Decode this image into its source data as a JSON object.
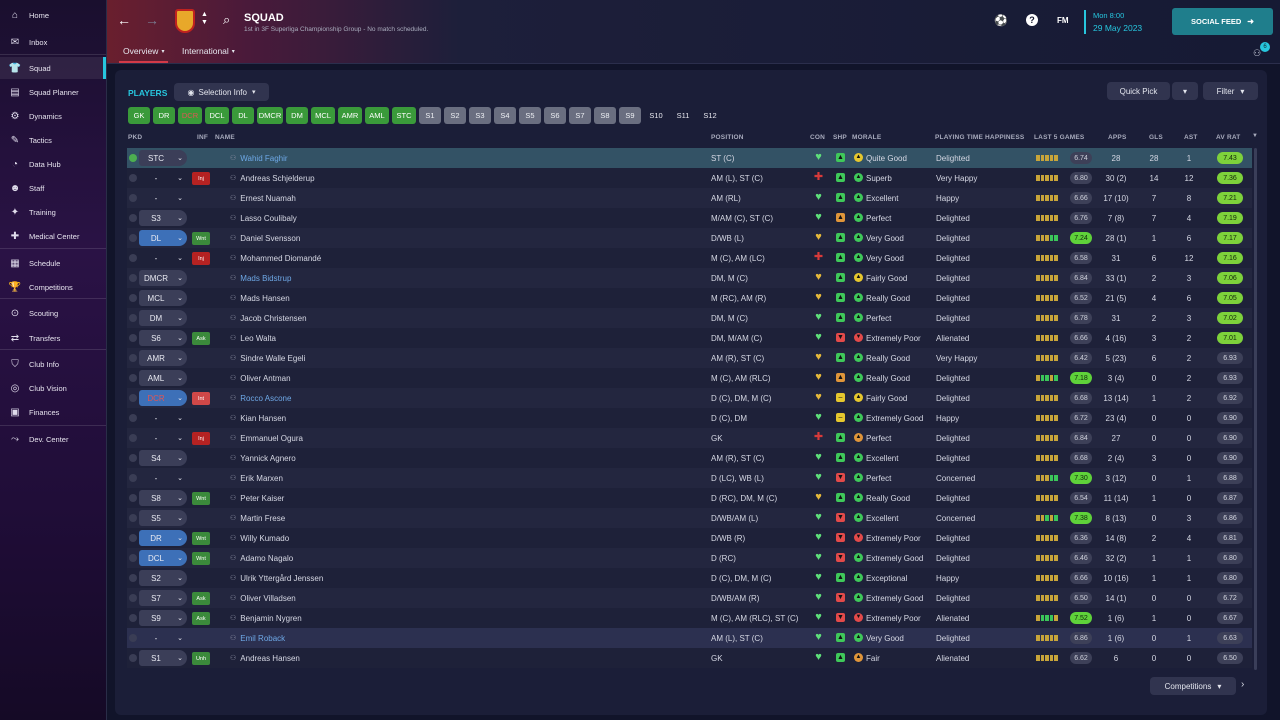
{
  "sidebar": {
    "items": [
      {
        "label": "Home",
        "icon": "home-icon",
        "glyph": "⌂"
      },
      {
        "label": "Inbox",
        "icon": "inbox-icon",
        "glyph": "✉"
      },
      {
        "label": "Squad",
        "icon": "shirt-icon",
        "glyph": "👕",
        "active": true
      },
      {
        "label": "Squad Planner",
        "icon": "planner-icon",
        "glyph": "▤"
      },
      {
        "label": "Dynamics",
        "icon": "dynamics-icon",
        "glyph": "⚙"
      },
      {
        "label": "Tactics",
        "icon": "tactics-icon",
        "glyph": "✎"
      },
      {
        "label": "Data Hub",
        "icon": "datahub-icon",
        "glyph": "◔"
      },
      {
        "label": "Staff",
        "icon": "staff-icon",
        "glyph": "☻"
      },
      {
        "label": "Training",
        "icon": "training-icon",
        "glyph": "✦"
      },
      {
        "label": "Medical Center",
        "icon": "medical-icon",
        "glyph": "✚"
      },
      {
        "label": "Schedule",
        "icon": "schedule-icon",
        "glyph": "▦"
      },
      {
        "label": "Competitions",
        "icon": "trophy-icon",
        "glyph": "🏆"
      },
      {
        "label": "Scouting",
        "icon": "scouting-icon",
        "glyph": "⊙"
      },
      {
        "label": "Transfers",
        "icon": "transfers-icon",
        "glyph": "⇄"
      },
      {
        "label": "Club Info",
        "icon": "shield-icon",
        "glyph": "⛉"
      },
      {
        "label": "Club Vision",
        "icon": "vision-icon",
        "glyph": "◎"
      },
      {
        "label": "Finances",
        "icon": "finances-icon",
        "glyph": "▣"
      },
      {
        "label": "Dev. Center",
        "icon": "devcenter-icon",
        "glyph": "⤳"
      }
    ]
  },
  "header": {
    "title": "SQUAD",
    "subtitle": "1st in 3F Superliga Championship Group - No match scheduled.",
    "date_day": "Mon 8:00",
    "date": "29 May 2023",
    "fm_label": "FM",
    "social_feed": "SOCIAL FEED",
    "social_badge": "6"
  },
  "subnav": {
    "overview": "Overview",
    "international": "International"
  },
  "toolbar": {
    "players_label": "PLAYERS",
    "selection_info": "Selection Info",
    "quick_pick": "Quick Pick",
    "filter": "Filter"
  },
  "chips": [
    {
      "label": "GK",
      "kind": "green"
    },
    {
      "label": "DR",
      "kind": "green"
    },
    {
      "label": "DCR",
      "kind": "green",
      "red": true
    },
    {
      "label": "DCL",
      "kind": "green"
    },
    {
      "label": "DL",
      "kind": "green"
    },
    {
      "label": "DMCR",
      "kind": "green"
    },
    {
      "label": "DM",
      "kind": "green"
    },
    {
      "label": "MCL",
      "kind": "green"
    },
    {
      "label": "AMR",
      "kind": "green"
    },
    {
      "label": "AML",
      "kind": "green"
    },
    {
      "label": "STC",
      "kind": "green"
    },
    {
      "label": "S1",
      "kind": "grey"
    },
    {
      "label": "S2",
      "kind": "grey"
    },
    {
      "label": "S3",
      "kind": "grey"
    },
    {
      "label": "S4",
      "kind": "grey"
    },
    {
      "label": "S5",
      "kind": "grey"
    },
    {
      "label": "S6",
      "kind": "grey"
    },
    {
      "label": "S7",
      "kind": "grey"
    },
    {
      "label": "S8",
      "kind": "grey"
    },
    {
      "label": "S9",
      "kind": "grey"
    },
    {
      "label": "S10",
      "kind": "plain"
    },
    {
      "label": "S11",
      "kind": "plain"
    },
    {
      "label": "S12",
      "kind": "plain"
    }
  ],
  "columns": {
    "pkd": "PKD",
    "inf": "INF",
    "name": "NAME",
    "position": "POSITION",
    "con": "CON",
    "shp": "SHP",
    "morale": "MORALE",
    "pth": "PLAYING TIME HAPPINESS",
    "last5": "LAST 5 GAMES",
    "apps": "APPS",
    "gls": "GLS",
    "ast": "AST",
    "avrat": "AV RAT"
  },
  "players": [
    {
      "pkd": "STC",
      "pkdStyle": "plain",
      "sel": true,
      "dot": "ok",
      "inf": "",
      "name": "Wahid Faghir",
      "link": true,
      "pos": "ST (C)",
      "con": "green",
      "shp": "up",
      "morale": "Quite Good",
      "mcol": "#e6c72e",
      "pth": "Delighted",
      "l5": "6.74",
      "l5hi": false,
      "bars": "yyyyy",
      "apps": "28",
      "gls": "28",
      "ast": "1",
      "avr": "7.43",
      "avrhi": true
    },
    {
      "pkd": "-",
      "pkdStyle": "none",
      "inf": "Inj",
      "infk": "inj",
      "name": "Andreas Schjelderup",
      "pos": "AM (L), ST (C)",
      "con": "injured",
      "shp": "up",
      "morale": "Superb",
      "mcol": "#3fc85a",
      "pth": "Very Happy",
      "l5": "6.80",
      "bars": "yyyyy",
      "apps": "30 (2)",
      "gls": "14",
      "ast": "12",
      "avr": "7.36",
      "avrhi": true
    },
    {
      "pkd": "-",
      "pkdStyle": "none",
      "inf": "",
      "name": "Ernest Nuamah",
      "pos": "AM (RL)",
      "con": "green",
      "shp": "up",
      "morale": "Excellent",
      "mcol": "#3fc85a",
      "pth": "Happy",
      "l5": "6.66",
      "bars": "yyyyy",
      "apps": "17 (10)",
      "gls": "7",
      "ast": "8",
      "avr": "7.21",
      "avrhi": true
    },
    {
      "pkd": "S3",
      "pkdStyle": "plain",
      "inf": "",
      "name": "Lasso Coulibaly",
      "pos": "M/AM (C), ST (C)",
      "con": "green",
      "shp": "upo",
      "morale": "Perfect",
      "mcol": "#3fc85a",
      "pth": "Delighted",
      "l5": "6.76",
      "bars": "yyyyy",
      "apps": "7 (8)",
      "gls": "7",
      "ast": "4",
      "avr": "7.19",
      "avrhi": true
    },
    {
      "pkd": "DL",
      "pkdStyle": "blue",
      "inf": "Wnt",
      "infk": "wnt",
      "name": "Daniel Svensson",
      "pos": "D/WB (L)",
      "con": "yellow",
      "shp": "up",
      "morale": "Very Good",
      "mcol": "#3fc85a",
      "pth": "Delighted",
      "l5": "7.24",
      "l5hi": true,
      "bars": "yyygg",
      "apps": "28 (1)",
      "gls": "1",
      "ast": "6",
      "avr": "7.17",
      "avrhi": true
    },
    {
      "pkd": "-",
      "pkdStyle": "none",
      "inf": "Inj",
      "infk": "inj",
      "name": "Mohammed Diomandé",
      "pos": "M (C), AM (LC)",
      "con": "injured",
      "shp": "up",
      "morale": "Very Good",
      "mcol": "#3fc85a",
      "pth": "Delighted",
      "l5": "6.58",
      "bars": "yyyyy",
      "apps": "31",
      "gls": "6",
      "ast": "12",
      "avr": "7.16",
      "avrhi": true
    },
    {
      "pkd": "DMCR",
      "pkdStyle": "plain",
      "inf": "",
      "name": "Mads Bidstrup",
      "link": true,
      "pos": "DM, M (C)",
      "con": "yellow",
      "shp": "up",
      "morale": "Fairly Good",
      "mcol": "#e6c72e",
      "pth": "Delighted",
      "l5": "6.84",
      "bars": "yyyyy",
      "apps": "33 (1)",
      "gls": "2",
      "ast": "3",
      "avr": "7.06",
      "avrhi": true
    },
    {
      "pkd": "MCL",
      "pkdStyle": "plain",
      "inf": "",
      "name": "Mads Hansen",
      "pos": "M (RC), AM (R)",
      "con": "yellow",
      "shp": "up",
      "morale": "Really Good",
      "mcol": "#3fc85a",
      "pth": "Delighted",
      "l5": "6.52",
      "bars": "yyyyy",
      "apps": "21 (5)",
      "gls": "4",
      "ast": "6",
      "avr": "7.05",
      "avrhi": true
    },
    {
      "pkd": "DM",
      "pkdStyle": "plain",
      "inf": "",
      "name": "Jacob Christensen",
      "pos": "DM, M (C)",
      "con": "green",
      "shp": "up",
      "morale": "Perfect",
      "mcol": "#3fc85a",
      "pth": "Delighted",
      "l5": "6.78",
      "bars": "yyyyy",
      "apps": "31",
      "gls": "2",
      "ast": "3",
      "avr": "7.02",
      "avrhi": true
    },
    {
      "pkd": "S6",
      "pkdStyle": "plain",
      "inf": "Ask",
      "infk": "ask",
      "name": "Leo Walta",
      "pos": "DM, M/AM (C)",
      "con": "green",
      "shp": "down",
      "morale": "Extremely Poor",
      "mcol": "#e34a4a",
      "pth": "Alienated",
      "l5": "6.66",
      "bars": "yyyyy",
      "apps": "4 (16)",
      "gls": "3",
      "ast": "2",
      "avr": "7.01",
      "avrhi": true
    },
    {
      "pkd": "AMR",
      "pkdStyle": "plainbg",
      "inf": "",
      "name": "Sindre Walle Egeli",
      "pos": "AM (R), ST (C)",
      "con": "yellow",
      "shp": "up",
      "morale": "Really Good",
      "mcol": "#3fc85a",
      "pth": "Very Happy",
      "l5": "6.42",
      "bars": "yyyyy",
      "apps": "5 (23)",
      "gls": "6",
      "ast": "2",
      "avr": "6.93"
    },
    {
      "pkd": "AML",
      "pkdStyle": "plainbg",
      "inf": "",
      "name": "Oliver Antman",
      "pos": "M (C), AM (RLC)",
      "con": "yellow",
      "shp": "upo",
      "morale": "Really Good",
      "mcol": "#3fc85a",
      "pth": "Delighted",
      "l5": "7.18",
      "l5hi": true,
      "bars": "yggyg",
      "apps": "3 (4)",
      "gls": "0",
      "ast": "2",
      "avr": "6.93"
    },
    {
      "pkd": "DCR",
      "pkdStyle": "blue",
      "pkdRed": true,
      "inf": "Int",
      "infk": "int",
      "name": "Rocco Ascone",
      "link": true,
      "pos": "D (C), DM, M (C)",
      "con": "yellow",
      "shp": "flat",
      "morale": "Fairly Good",
      "mcol": "#e6c72e",
      "pth": "Delighted",
      "l5": "6.68",
      "bars": "yyyyy",
      "apps": "13 (14)",
      "gls": "1",
      "ast": "2",
      "avr": "6.92"
    },
    {
      "pkd": "-",
      "pkdStyle": "none",
      "inf": "",
      "name": "Kian Hansen",
      "pos": "D (C), DM",
      "con": "green",
      "shp": "flat",
      "morale": "Extremely Good",
      "mcol": "#3fc85a",
      "pth": "Happy",
      "l5": "6.72",
      "bars": "yyyyy",
      "apps": "23 (4)",
      "gls": "0",
      "ast": "0",
      "avr": "6.90"
    },
    {
      "pkd": "-",
      "pkdStyle": "none",
      "inf": "Inj",
      "infk": "inj",
      "name": "Emmanuel Ogura",
      "pos": "GK",
      "con": "injured",
      "shp": "up",
      "morale": "Perfect",
      "mcol": "#e0953a",
      "pth": "Delighted",
      "l5": "6.84",
      "bars": "yyyyy",
      "apps": "27",
      "gls": "0",
      "ast": "0",
      "avr": "6.90"
    },
    {
      "pkd": "S4",
      "pkdStyle": "plain",
      "inf": "",
      "name": "Yannick Agnero",
      "pos": "AM (R), ST (C)",
      "con": "green",
      "shp": "up",
      "morale": "Excellent",
      "mcol": "#3fc85a",
      "pth": "Delighted",
      "l5": "6.68",
      "bars": "yyyyy",
      "apps": "2 (4)",
      "gls": "3",
      "ast": "0",
      "avr": "6.90"
    },
    {
      "pkd": "-",
      "pkdStyle": "none",
      "inf": "",
      "name": "Erik Marxen",
      "pos": "D (LC), WB (L)",
      "con": "green",
      "shp": "down",
      "morale": "Perfect",
      "mcol": "#3fc85a",
      "pth": "Concerned",
      "l5": "7.30",
      "l5hi": true,
      "bars": "yyygg",
      "apps": "3 (12)",
      "gls": "0",
      "ast": "1",
      "avr": "6.88"
    },
    {
      "pkd": "S8",
      "pkdStyle": "plain",
      "inf": "Wnt",
      "infk": "wnt",
      "name": "Peter Kaiser",
      "pos": "D (RC), DM, M (C)",
      "con": "yellow",
      "shp": "up",
      "morale": "Really Good",
      "mcol": "#3fc85a",
      "pth": "Delighted",
      "l5": "6.54",
      "bars": "yyyyy",
      "apps": "11 (14)",
      "gls": "1",
      "ast": "0",
      "avr": "6.87"
    },
    {
      "pkd": "S5",
      "pkdStyle": "plain",
      "inf": "",
      "name": "Martin Frese",
      "pos": "D/WB/AM (L)",
      "con": "green",
      "shp": "down",
      "morale": "Excellent",
      "mcol": "#3fc85a",
      "pth": "Concerned",
      "l5": "7.38",
      "l5hi": true,
      "bars": "yygyg",
      "apps": "8 (13)",
      "gls": "0",
      "ast": "3",
      "avr": "6.86"
    },
    {
      "pkd": "DR",
      "pkdStyle": "blue",
      "inf": "Wnt",
      "infk": "wnt",
      "name": "Willy Kumado",
      "pos": "D/WB (R)",
      "con": "green",
      "shp": "down",
      "morale": "Extremely Poor",
      "mcol": "#e34a4a",
      "pth": "Delighted",
      "l5": "6.36",
      "bars": "yyyyy",
      "apps": "14 (8)",
      "gls": "2",
      "ast": "4",
      "avr": "6.81"
    },
    {
      "pkd": "DCL",
      "pkdStyle": "blue",
      "inf": "Wnt",
      "infk": "wnt",
      "name": "Adamo Nagalo",
      "pos": "D (RC)",
      "con": "green",
      "shp": "down",
      "morale": "Extremely Good",
      "mcol": "#3fc85a",
      "pth": "Delighted",
      "l5": "6.46",
      "bars": "yyyyy",
      "apps": "32 (2)",
      "gls": "1",
      "ast": "1",
      "avr": "6.80"
    },
    {
      "pkd": "S2",
      "pkdStyle": "plain",
      "inf": "",
      "name": "Ulrik Yttergård Jenssen",
      "pos": "D (C), DM, M (C)",
      "con": "green",
      "shp": "up",
      "morale": "Exceptional",
      "mcol": "#3fc85a",
      "pth": "Happy",
      "l5": "6.66",
      "bars": "yyyyy",
      "apps": "10 (16)",
      "gls": "1",
      "ast": "1",
      "avr": "6.80"
    },
    {
      "pkd": "S7",
      "pkdStyle": "plain",
      "inf": "Ask",
      "infk": "ask",
      "name": "Oliver Villadsen",
      "pos": "D/WB/AM (R)",
      "con": "green",
      "shp": "down",
      "morale": "Extremely Good",
      "mcol": "#3fc85a",
      "pth": "Delighted",
      "l5": "6.50",
      "bars": "yyyyy",
      "apps": "14 (1)",
      "gls": "0",
      "ast": "0",
      "avr": "6.72"
    },
    {
      "pkd": "S9",
      "pkdStyle": "plain",
      "inf": "Ask",
      "infk": "ask",
      "name": "Benjamin Nygren",
      "pos": "M (C), AM (RLC), ST (C)",
      "con": "green",
      "shp": "down",
      "morale": "Extremely Poor",
      "mcol": "#e34a4a",
      "pth": "Alienated",
      "l5": "7.52",
      "l5hi": true,
      "bars": "ygggy",
      "apps": "1 (6)",
      "gls": "1",
      "ast": "0",
      "avr": "6.67"
    },
    {
      "pkd": "-",
      "pkdStyle": "none",
      "sel2": true,
      "inf": "",
      "name": "Emil Roback",
      "link": true,
      "pos": "AM (L), ST (C)",
      "con": "green",
      "shp": "up",
      "morale": "Very Good",
      "mcol": "#3fc85a",
      "pth": "Delighted",
      "l5": "6.86",
      "bars": "yyyyy",
      "apps": "1 (6)",
      "gls": "0",
      "ast": "1",
      "avr": "6.63"
    },
    {
      "pkd": "S1",
      "pkdStyle": "plain",
      "inf": "Unh",
      "infk": "unh",
      "name": "Andreas Hansen",
      "pos": "GK",
      "con": "green",
      "shp": "up",
      "morale": "Fair",
      "mcol": "#e0953a",
      "pth": "Alienated",
      "l5": "6.62",
      "bars": "yyyyy",
      "apps": "6",
      "gls": "0",
      "ast": "0",
      "avr": "6.50"
    }
  ],
  "footer": {
    "competitions": "Competitions"
  }
}
